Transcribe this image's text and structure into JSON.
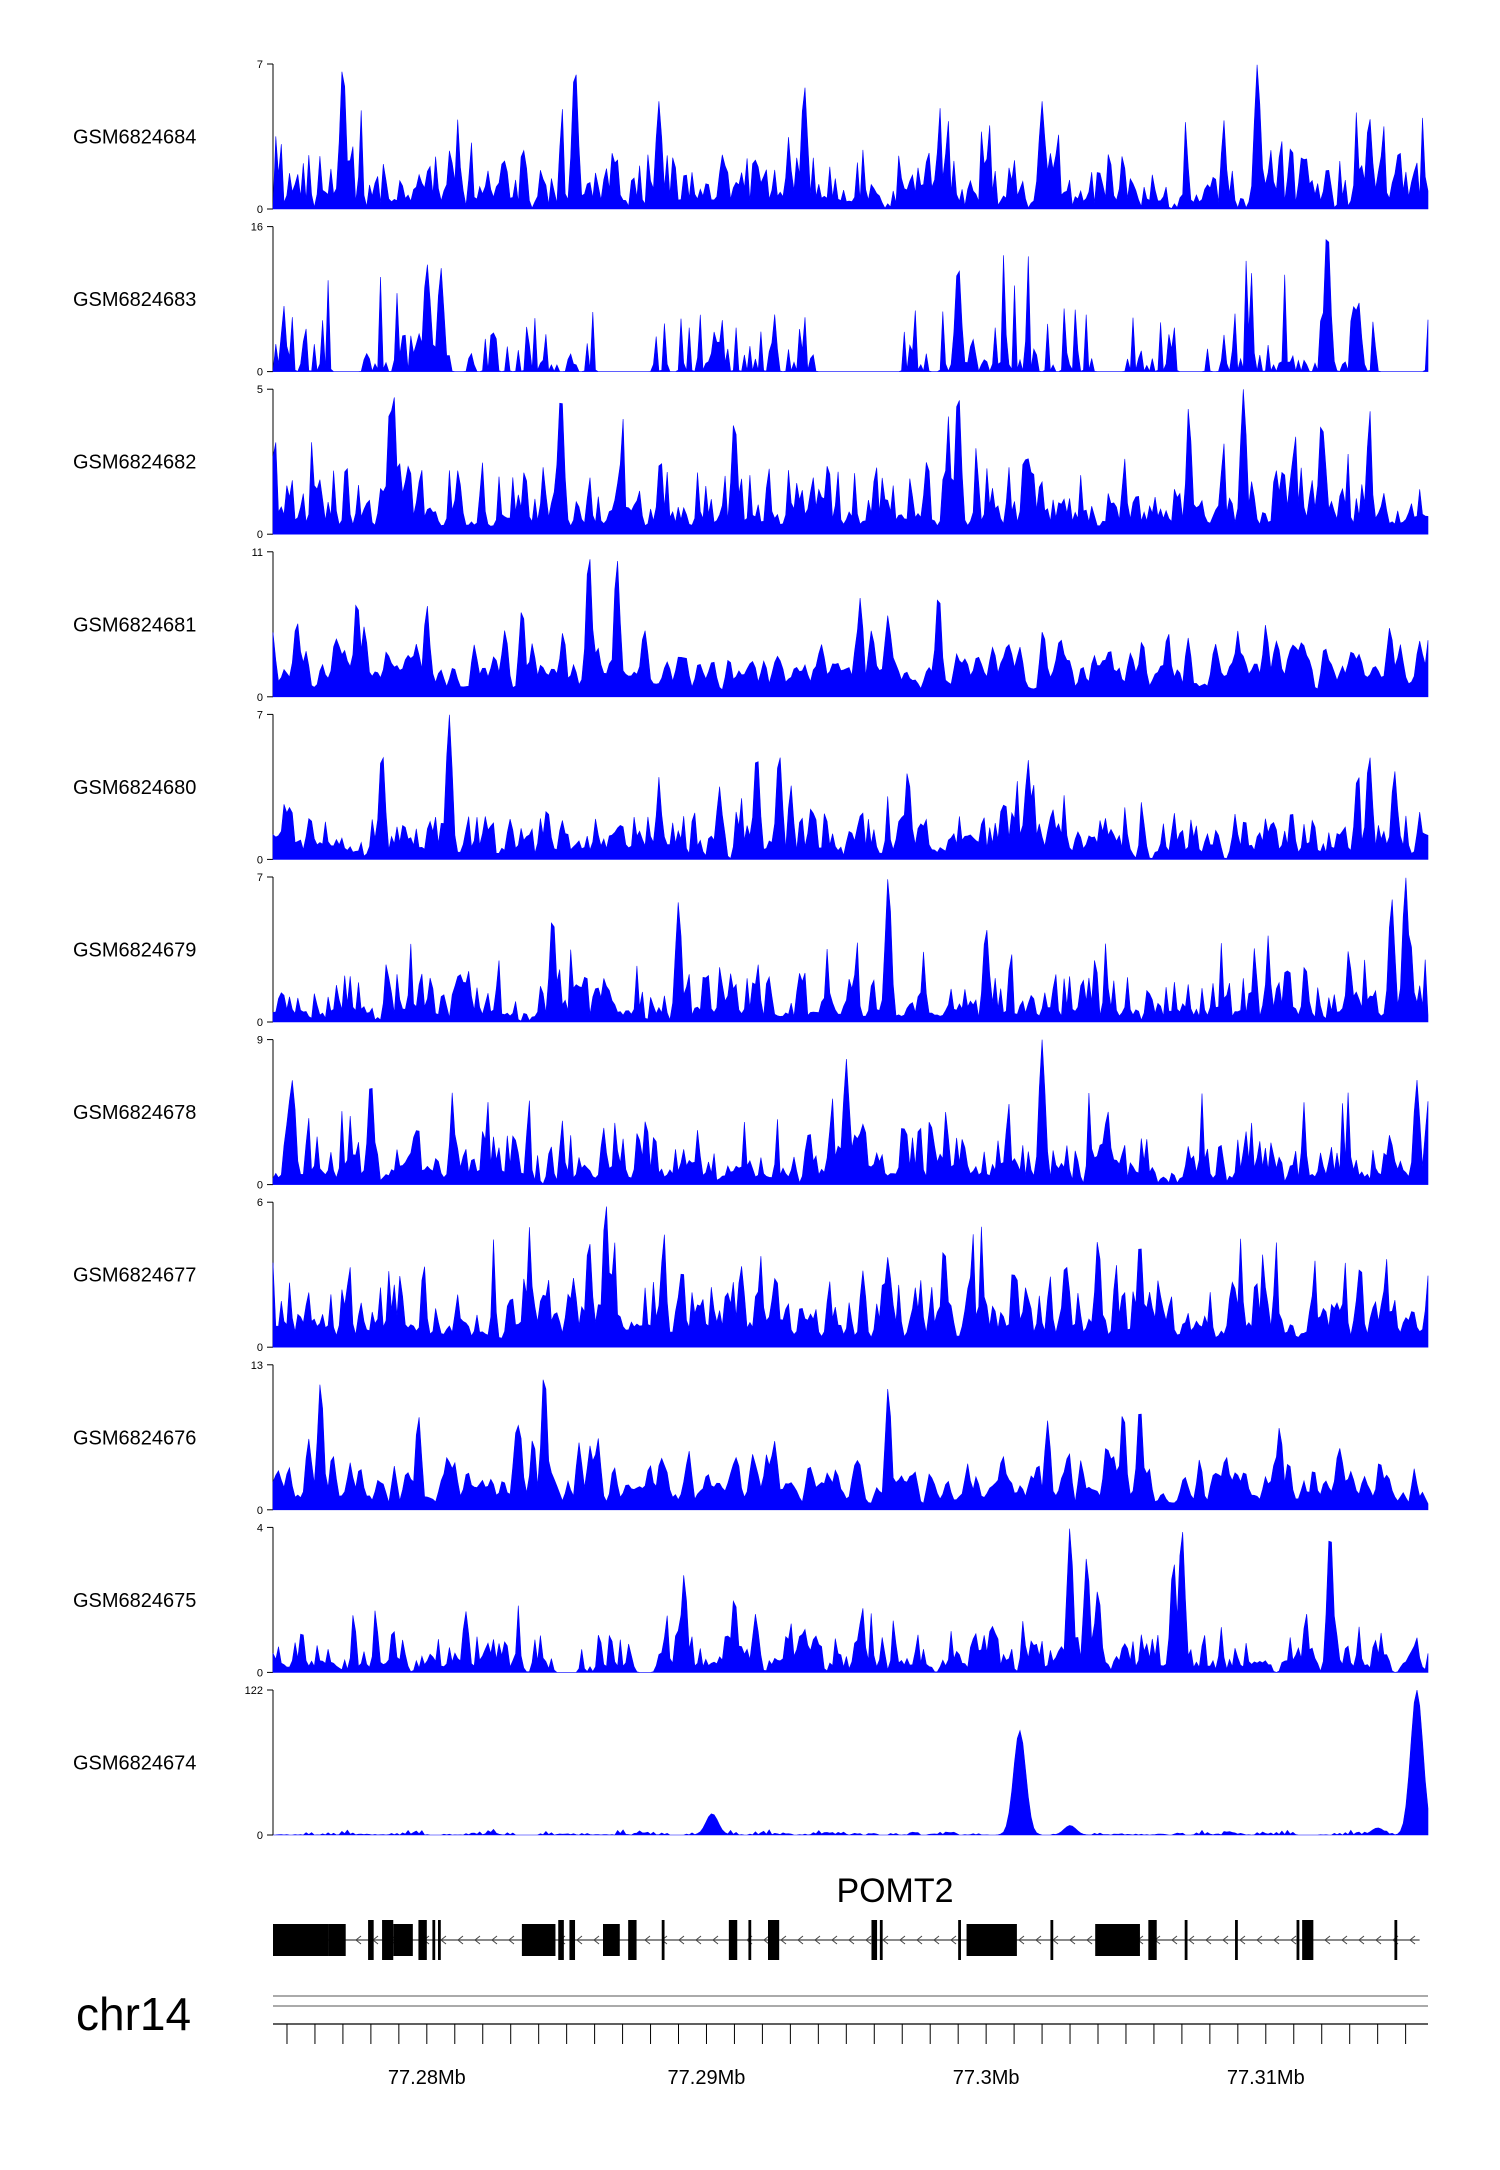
{
  "chart_data": {
    "type": "area",
    "chromosome": "chr14",
    "genomic_range": [
      77.2745,
      77.3158
    ],
    "x_unit": "Mb",
    "color": "#0000ff",
    "tracks": [
      {
        "name": "GSM6824684",
        "ymax": 7,
        "ymin": 0,
        "seed": 11,
        "density": 0.9,
        "smooth": 0.15,
        "baseline": 0.28,
        "peaks": [
          [
            77.277,
            7.0
          ],
          [
            77.2853,
            7.0
          ],
          [
            77.2883,
            5.2
          ],
          [
            77.2935,
            6.0
          ],
          [
            77.302,
            5.2
          ],
          [
            77.3097,
            7.0
          ],
          [
            77.3137,
            4.5
          ]
        ]
      },
      {
        "name": "GSM6824683",
        "ymax": 16,
        "ymin": 0,
        "seed": 23,
        "density": 0.55,
        "smooth": 0.05,
        "baseline": 0.3,
        "peaks": [
          [
            77.28,
            12.0
          ],
          [
            77.2805,
            11.5
          ],
          [
            77.2903,
            4.0
          ],
          [
            77.299,
            12.0
          ],
          [
            77.3122,
            16.0
          ],
          [
            77.3133,
            8.0
          ]
        ],
        "gaps": [
          [
            77.2767,
            77.2776
          ],
          [
            77.2865,
            77.288
          ],
          [
            77.294,
            77.297
          ],
          [
            77.3041,
            77.305
          ],
          [
            77.3068,
            77.3078
          ],
          [
            77.314,
            77.3158
          ]
        ]
      },
      {
        "name": "GSM6824682",
        "ymax": 5,
        "ymin": 0,
        "seed": 37,
        "density": 1.0,
        "smooth": 0.2,
        "baseline": 0.35,
        "peaks": [
          [
            77.2788,
            5.0
          ],
          [
            77.2848,
            5.0
          ],
          [
            77.291,
            4.0
          ],
          [
            77.299,
            5.0
          ],
          [
            77.3092,
            5.0
          ],
          [
            77.312,
            4.0
          ]
        ]
      },
      {
        "name": "GSM6824681",
        "ymax": 11,
        "ymin": 0,
        "seed": 41,
        "density": 1.0,
        "smooth": 0.55,
        "baseline": 0.32,
        "peaks": [
          [
            77.2775,
            7.5
          ],
          [
            77.28,
            7.0
          ],
          [
            77.2858,
            11.0
          ],
          [
            77.2868,
            10.5
          ],
          [
            77.2955,
            7.5
          ],
          [
            77.2983,
            8.0
          ],
          [
            77.3065,
            5.0
          ],
          [
            77.309,
            5.0
          ],
          [
            77.31,
            5.5
          ],
          [
            77.3148,
            4.0
          ]
        ]
      },
      {
        "name": "GSM6824680",
        "ymax": 7,
        "ymin": 0,
        "seed": 53,
        "density": 0.95,
        "smooth": 0.25,
        "baseline": 0.25,
        "peaks": [
          [
            77.2784,
            5.3
          ],
          [
            77.2808,
            7.0
          ],
          [
            77.2918,
            5.2
          ],
          [
            77.2926,
            5.2
          ],
          [
            77.2972,
            4.3
          ],
          [
            77.3015,
            4.8
          ],
          [
            77.3137,
            5.1
          ],
          [
            77.3146,
            4.3
          ]
        ]
      },
      {
        "name": "GSM6824679",
        "ymax": 7,
        "ymin": 0,
        "seed": 67,
        "density": 0.9,
        "smooth": 0.2,
        "baseline": 0.25,
        "peaks": [
          [
            77.2845,
            5.2
          ],
          [
            77.289,
            5.8
          ],
          [
            77.2965,
            7.0
          ],
          [
            77.3,
            4.6
          ],
          [
            77.3145,
            6.0
          ],
          [
            77.315,
            7.0
          ]
        ]
      },
      {
        "name": "GSM6824678",
        "ymax": 9,
        "ymin": 0,
        "seed": 79,
        "density": 0.95,
        "smooth": 0.2,
        "baseline": 0.28,
        "peaks": [
          [
            77.2752,
            6.5
          ],
          [
            77.278,
            6.6
          ],
          [
            77.295,
            7.8
          ],
          [
            77.302,
            9.0
          ],
          [
            77.3154,
            6.5
          ]
        ]
      },
      {
        "name": "GSM6824677",
        "ymax": 6,
        "ymin": 0,
        "seed": 83,
        "density": 1.0,
        "smooth": 0.3,
        "baseline": 0.4,
        "peaks": [
          [
            77.2858,
            4.5
          ],
          [
            77.2864,
            6.0
          ],
          [
            77.2985,
            4.2
          ],
          [
            77.304,
            4.5
          ],
          [
            77.3055,
            4.5
          ]
        ]
      },
      {
        "name": "GSM6824676",
        "ymax": 13,
        "ymin": 0,
        "seed": 97,
        "density": 1.0,
        "smooth": 0.5,
        "baseline": 0.28,
        "peaks": [
          [
            77.2762,
            11.5
          ],
          [
            77.2797,
            8.5
          ],
          [
            77.2838,
            6.5
          ],
          [
            77.2842,
            12.5
          ],
          [
            77.2965,
            11.0
          ],
          [
            77.3022,
            8.0
          ],
          [
            77.3049,
            9.0
          ],
          [
            77.3055,
            9.5
          ],
          [
            77.3105,
            7.5
          ]
        ]
      },
      {
        "name": "GSM6824675",
        "ymax": 4,
        "ymin": 0,
        "seed": 101,
        "density": 0.85,
        "smooth": 0.25,
        "baseline": 0.22,
        "peaks": [
          [
            77.2892,
            2.7
          ],
          [
            77.291,
            2.1
          ],
          [
            77.303,
            4.0
          ],
          [
            77.3036,
            3.2
          ],
          [
            77.304,
            2.3
          ],
          [
            77.3067,
            3.1
          ],
          [
            77.307,
            4.0
          ],
          [
            77.3123,
            4.0
          ]
        ],
        "gaps": [
          [
            77.2845,
            77.2855
          ],
          [
            77.2875,
            77.2882
          ]
        ]
      },
      {
        "name": "GSM6824674",
        "ymax": 122,
        "ymin": 0,
        "seed": 113,
        "density": 0.4,
        "smooth": 0.9,
        "baseline": 0.025,
        "peaks": [
          [
            77.2902,
            18.0
          ],
          [
            77.3012,
            88.0
          ],
          [
            77.303,
            8.0
          ],
          [
            77.314,
            6.0
          ],
          [
            77.3154,
            122.0
          ]
        ]
      }
    ],
    "gene_track": {
      "name": "POMT2",
      "strand": "-",
      "start": 77.2745,
      "end": 77.3155,
      "exons": [
        [
          77.2745,
          77.2765
        ],
        [
          77.2765,
          77.2771
        ],
        [
          77.2779,
          77.2781
        ],
        [
          77.2784,
          77.2788
        ],
        [
          77.2788,
          77.2795
        ],
        [
          77.2797,
          77.28
        ],
        [
          77.2802,
          77.2803
        ],
        [
          77.2804,
          77.2805
        ],
        [
          77.2834,
          77.2846
        ],
        [
          77.2847,
          77.2849
        ],
        [
          77.2851,
          77.2853
        ],
        [
          77.2863,
          77.2869
        ],
        [
          77.2872,
          77.2875
        ],
        [
          77.2884,
          77.2885
        ],
        [
          77.2908,
          77.2911
        ],
        [
          77.2915,
          77.2916
        ],
        [
          77.2922,
          77.2926
        ],
        [
          77.2959,
          77.2961
        ],
        [
          77.2962,
          77.2963
        ],
        [
          77.299,
          77.2991
        ],
        [
          77.2993,
          77.3011
        ],
        [
          77.3023,
          77.3024
        ],
        [
          77.3039,
          77.3055
        ],
        [
          77.3058,
          77.3061
        ],
        [
          77.3071,
          77.3072
        ],
        [
          77.3089,
          77.309
        ],
        [
          77.3111,
          77.3112
        ],
        [
          77.3113,
          77.3117
        ],
        [
          77.3146,
          77.3147
        ]
      ]
    },
    "axis": {
      "ticks": [
        77.275,
        77.276,
        77.277,
        77.278,
        77.279,
        77.28,
        77.281,
        77.282,
        77.283,
        77.284,
        77.285,
        77.286,
        77.287,
        77.288,
        77.289,
        77.29,
        77.291,
        77.292,
        77.293,
        77.294,
        77.295,
        77.296,
        77.297,
        77.298,
        77.299,
        77.3,
        77.301,
        77.302,
        77.303,
        77.304,
        77.305,
        77.306,
        77.307,
        77.308,
        77.309,
        77.31,
        77.311,
        77.312,
        77.313,
        77.314,
        77.315
      ],
      "labels": [
        {
          "value": 77.28,
          "text": "77.28Mb"
        },
        {
          "value": 77.29,
          "text": "77.29Mb"
        },
        {
          "value": 77.3,
          "text": "77.3Mb"
        },
        {
          "value": 77.31,
          "text": "77.31Mb"
        }
      ]
    }
  }
}
